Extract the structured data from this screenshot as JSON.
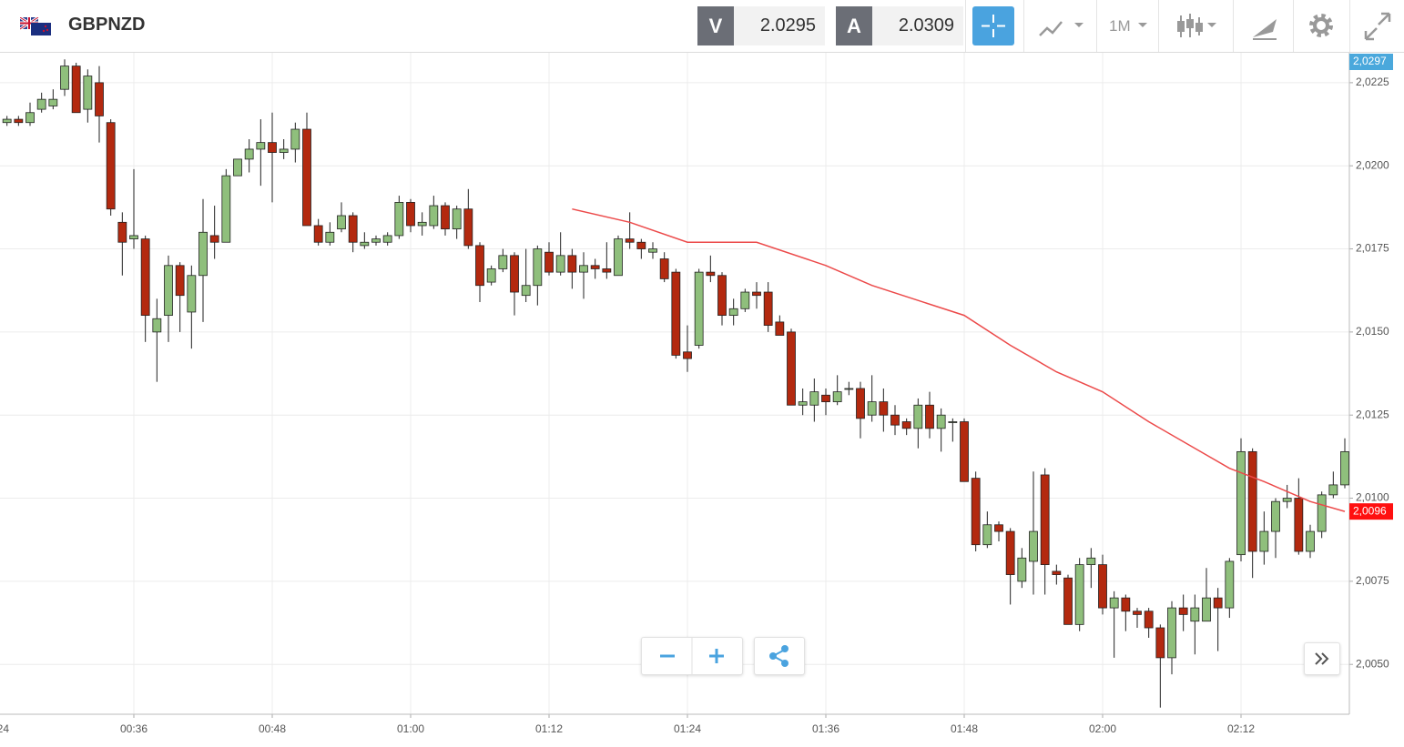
{
  "header": {
    "symbol": "GBPNZD",
    "bid_label": "V",
    "bid": "2.0295",
    "ask_label": "A",
    "ask": "2.0309",
    "timeframe": "1M"
  },
  "chart_data": {
    "type": "candlestick",
    "x": [
      "00:25",
      "00:26",
      "00:27",
      "00:28",
      "00:29",
      "00:30",
      "00:31",
      "00:32",
      "00:33",
      "00:34",
      "00:35",
      "00:36",
      "00:37",
      "00:38",
      "00:39",
      "00:40",
      "00:41",
      "00:42",
      "00:43",
      "00:44",
      "00:45",
      "00:46",
      "00:47",
      "00:48",
      "00:49",
      "00:50",
      "00:51",
      "00:52",
      "00:53",
      "00:54",
      "00:55",
      "00:56",
      "00:57",
      "00:58",
      "00:59",
      "01:00",
      "01:01",
      "01:02",
      "01:03",
      "01:04",
      "01:05",
      "01:06",
      "01:07",
      "01:08",
      "01:09",
      "01:10",
      "01:11",
      "01:12",
      "01:13",
      "01:14",
      "01:15",
      "01:16",
      "01:17",
      "01:18",
      "01:19",
      "01:20",
      "01:21",
      "01:22",
      "01:23",
      "01:24",
      "01:25",
      "01:26",
      "01:27",
      "01:28",
      "01:29",
      "01:30",
      "01:31",
      "01:32",
      "01:33",
      "01:34",
      "01:35",
      "01:36",
      "01:37",
      "01:38",
      "01:39",
      "01:40",
      "01:41",
      "01:42",
      "01:43",
      "01:44",
      "01:45",
      "01:46",
      "01:47",
      "01:48",
      "01:49",
      "01:50",
      "01:51",
      "01:52",
      "01:53",
      "01:54",
      "01:55",
      "01:56",
      "01:57",
      "01:58",
      "01:59",
      "02:00",
      "02:01",
      "02:02",
      "02:03",
      "02:04",
      "02:05",
      "02:06",
      "02:07",
      "02:08",
      "02:09",
      "02:10",
      "02:11",
      "02:12",
      "02:13",
      "02:14",
      "02:15",
      "02:16",
      "02:17",
      "02:18",
      "02:19",
      "02:20",
      "02:21"
    ],
    "open": [
      2.0213,
      2.0214,
      2.0213,
      2.0217,
      2.0218,
      2.0223,
      2.023,
      2.0217,
      2.0225,
      2.0213,
      2.0183,
      2.0178,
      2.0178,
      2.015,
      2.0155,
      2.017,
      2.0156,
      2.0167,
      2.0179,
      2.0177,
      2.0197,
      2.0202,
      2.0205,
      2.0207,
      2.0204,
      2.0205,
      2.0211,
      2.0182,
      2.0177,
      2.0181,
      2.0185,
      2.0176,
      2.0177,
      2.0177,
      2.0179,
      2.0189,
      2.0182,
      2.0182,
      2.0188,
      2.0181,
      2.0187,
      2.0176,
      2.0165,
      2.0169,
      2.0173,
      2.0161,
      2.0164,
      2.0174,
      2.0168,
      2.0173,
      2.0168,
      2.017,
      2.0169,
      2.0167,
      2.0178,
      2.0177,
      2.0174,
      2.0172,
      2.0168,
      2.0144,
      2.0146,
      2.0168,
      2.0167,
      2.0155,
      2.0157,
      2.0162,
      2.0162,
      2.0153,
      2.015,
      2.0128,
      2.0128,
      2.0131,
      2.0129,
      2.0133,
      2.0133,
      2.0125,
      2.0129,
      2.0125,
      2.0123,
      2.0121,
      2.0128,
      2.0121,
      2.0123,
      2.0123,
      2.0106,
      2.0086,
      2.0092,
      2.009,
      2.0075,
      2.0081,
      2.0107,
      2.0078,
      2.0076,
      2.0062,
      2.008,
      2.008,
      2.0067,
      2.007,
      2.0066,
      2.0066,
      2.0061,
      2.0052,
      2.0067,
      2.0063,
      2.0063,
      2.007,
      2.0067,
      2.0083,
      2.0114,
      2.0084,
      2.009,
      2.0099,
      2.01,
      2.0084,
      2.009,
      2.0101,
      2.0104
    ],
    "high": [
      2.0215,
      2.0215,
      2.0219,
      2.0222,
      2.0223,
      2.0232,
      2.0231,
      2.0229,
      2.023,
      2.0214,
      2.0186,
      2.0199,
      2.0179,
      2.016,
      2.0173,
      2.0171,
      2.017,
      2.019,
      2.0188,
      2.0199,
      2.0202,
      2.0208,
      2.0214,
      2.0216,
      2.0208,
      2.0213,
      2.0216,
      2.0184,
      2.0183,
      2.0189,
      2.0186,
      2.018,
      2.0179,
      2.018,
      2.0191,
      2.019,
      2.0186,
      2.0191,
      2.0189,
      2.0188,
      2.0193,
      2.0177,
      2.017,
      2.0175,
      2.0174,
      2.0175,
      2.0176,
      2.0177,
      2.018,
      2.0175,
      2.0174,
      2.0172,
      2.0177,
      2.0179,
      2.0186,
      2.0178,
      2.0177,
      2.0174,
      2.0169,
      2.0152,
      2.0169,
      2.0173,
      2.0168,
      2.016,
      2.0163,
      2.0165,
      2.0165,
      2.0155,
      2.0151,
      2.0133,
      2.0136,
      2.0133,
      2.0137,
      2.0135,
      2.0135,
      2.0137,
      2.0133,
      2.0128,
      2.0124,
      2.013,
      2.0132,
      2.0127,
      2.0124,
      2.0124,
      2.0108,
      2.0096,
      2.0093,
      2.0091,
      2.0085,
      2.0108,
      2.0109,
      2.008,
      2.0077,
      2.0082,
      2.0085,
      2.0083,
      2.0072,
      2.0071,
      2.0067,
      2.0067,
      2.0062,
      2.0069,
      2.0071,
      2.0071,
      2.0079,
      2.0073,
      2.0082,
      2.0118,
      2.0115,
      2.0096,
      2.01,
      2.0104,
      2.0106,
      2.0092,
      2.0102,
      2.0108,
      2.0118
    ],
    "low": [
      2.0212,
      2.0212,
      2.0212,
      2.0216,
      2.0217,
      2.0221,
      2.0216,
      2.0213,
      2.0207,
      2.0185,
      2.0167,
      2.0175,
      2.0147,
      2.0135,
      2.0147,
      2.015,
      2.0145,
      2.0153,
      2.0172,
      2.0177,
      2.0197,
      2.0198,
      2.0194,
      2.0189,
      2.0202,
      2.0201,
      2.0182,
      2.0176,
      2.0176,
      2.018,
      2.0174,
      2.0175,
      2.0176,
      2.0176,
      2.0178,
      2.018,
      2.0179,
      2.0181,
      2.0179,
      2.0178,
      2.0175,
      2.0159,
      2.0164,
      2.0168,
      2.0155,
      2.0159,
      2.0158,
      2.0167,
      2.0167,
      2.0163,
      2.016,
      2.0166,
      2.0166,
      2.0167,
      2.0175,
      2.0172,
      2.0172,
      2.0165,
      2.0142,
      2.0138,
      2.0145,
      2.0165,
      2.0152,
      2.0152,
      2.0156,
      2.0157,
      2.015,
      2.0149,
      2.0128,
      2.0125,
      2.0123,
      2.0125,
      2.0128,
      2.0131,
      2.0118,
      2.0123,
      2.012,
      2.0119,
      2.0119,
      2.0115,
      2.0118,
      2.0114,
      2.0117,
      2.0105,
      2.0084,
      2.0085,
      2.0087,
      2.0068,
      2.0073,
      2.0071,
      2.0071,
      2.0074,
      2.0062,
      2.006,
      2.0073,
      2.0065,
      2.0052,
      2.006,
      2.0061,
      2.0058,
      2.0037,
      2.0047,
      2.006,
      2.0053,
      2.0063,
      2.0054,
      2.0064,
      2.0081,
      2.0076,
      2.008,
      2.0082,
      2.0097,
      2.0083,
      2.0082,
      2.0088,
      2.01,
      2.0103
    ],
    "close": [
      2.0214,
      2.0213,
      2.0216,
      2.022,
      2.022,
      2.023,
      2.0216,
      2.0227,
      2.0215,
      2.0187,
      2.0177,
      2.0179,
      2.0155,
      2.0154,
      2.017,
      2.0161,
      2.0167,
      2.018,
      2.0177,
      2.0197,
      2.0202,
      2.0205,
      2.0207,
      2.0204,
      2.0205,
      2.0211,
      2.0182,
      2.0177,
      2.018,
      2.0185,
      2.0177,
      2.0177,
      2.0178,
      2.0179,
      2.0189,
      2.0182,
      2.0183,
      2.0188,
      2.0181,
      2.0187,
      2.0176,
      2.0164,
      2.0169,
      2.0173,
      2.0162,
      2.0164,
      2.0175,
      2.0168,
      2.0173,
      2.0168,
      2.017,
      2.0169,
      2.0168,
      2.0178,
      2.0177,
      2.0175,
      2.0175,
      2.0166,
      2.0143,
      2.0142,
      2.0168,
      2.0167,
      2.0155,
      2.0157,
      2.0162,
      2.0161,
      2.0152,
      2.0149,
      2.0128,
      2.0129,
      2.0132,
      2.0129,
      2.0132,
      2.0133,
      2.0124,
      2.0129,
      2.0125,
      2.0122,
      2.0121,
      2.0128,
      2.0121,
      2.0125,
      2.0123,
      2.0105,
      2.0086,
      2.0092,
      2.009,
      2.0077,
      2.0082,
      2.009,
      2.008,
      2.0077,
      2.0062,
      2.008,
      2.0082,
      2.0067,
      2.007,
      2.0066,
      2.0065,
      2.0061,
      2.0052,
      2.0067,
      2.0065,
      2.0067,
      2.007,
      2.0067,
      2.0081,
      2.0114,
      2.0084,
      2.009,
      2.0099,
      2.01,
      2.0084,
      2.009,
      2.0101,
      2.0104,
      2.0114
    ],
    "up_color": "#8fbf7c",
    "down_color": "#b3290f",
    "ylim": [
      2.0035,
      2.0234
    ],
    "yticks": [
      {
        "value": 2.005,
        "label": "2,0050"
      },
      {
        "value": 2.0075,
        "label": "2,0075"
      },
      {
        "value": 2.01,
        "label": "2,0100"
      },
      {
        "value": 2.0125,
        "label": "2,0125"
      },
      {
        "value": 2.015,
        "label": "2,0150"
      },
      {
        "value": 2.0175,
        "label": "2,0175"
      },
      {
        "value": 2.02,
        "label": "2,0200"
      },
      {
        "value": 2.0225,
        "label": "2,0225"
      }
    ],
    "xticks": [
      "00:24",
      "00:36",
      "00:48",
      "01:00",
      "01:12",
      "01:24",
      "01:36",
      "01:48",
      "02:00",
      "02:12"
    ],
    "grid": true,
    "moving_average": {
      "color": "#ec4a4a",
      "x": [
        "01:14",
        "01:19",
        "01:24",
        "01:30",
        "01:36",
        "01:40",
        "01:48",
        "01:52",
        "01:56",
        "02:00",
        "02:04",
        "02:08",
        "02:11",
        "02:14",
        "02:18",
        "02:21"
      ],
      "values": [
        2.0187,
        2.0183,
        2.0177,
        2.0177,
        2.017,
        2.0164,
        2.0155,
        2.0146,
        2.0138,
        2.0132,
        2.0123,
        2.0115,
        2.0109,
        2.0105,
        2.0099,
        2.0096
      ]
    },
    "price_markers": [
      {
        "value": 2.0297,
        "label": "2,0297",
        "color": "#4aa8dc"
      },
      {
        "value": 2.0096,
        "label": "2,0096",
        "color": "#ff1010"
      }
    ]
  }
}
